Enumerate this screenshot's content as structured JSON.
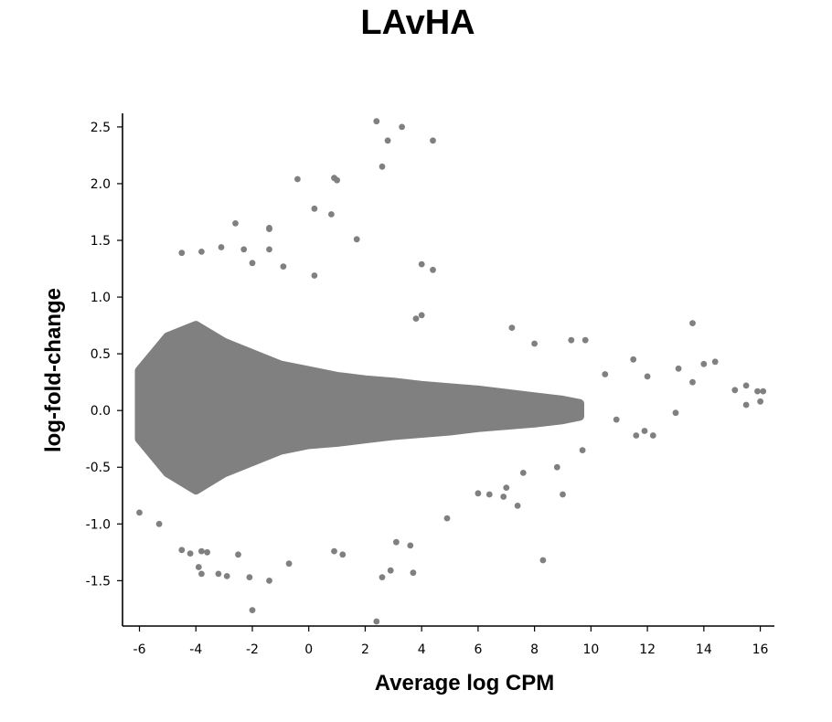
{
  "chart_data": {
    "type": "scatter",
    "title": "LAvHA",
    "xlabel": "Average log CPM",
    "ylabel": "log-fold-change",
    "xlim": [
      -6.6,
      16.5
    ],
    "ylim": [
      -1.9,
      2.62
    ],
    "x_ticks": [
      -6,
      -4,
      -2,
      0,
      2,
      4,
      6,
      8,
      10,
      12,
      14,
      16
    ],
    "x_tick_labels": [
      "-6",
      "-4",
      "-2",
      "0",
      "2",
      "4",
      "6",
      "8",
      "10",
      "12",
      "14",
      "16"
    ],
    "y_ticks": [
      -1.5,
      -1.0,
      -0.5,
      0.0,
      0.5,
      1.0,
      1.5,
      2.0,
      2.5
    ],
    "y_tick_labels": [
      "-1.5",
      "-1.0",
      "-0.5",
      "0.0",
      "0.5",
      "1.0",
      "1.5",
      "2.0",
      "2.5"
    ],
    "marker_color": "#808080",
    "grid": false,
    "legend": "none",
    "dense_cloud": [
      [
        -6.0,
        -0.25,
        0.35
      ],
      [
        -5.0,
        -0.55,
        0.65
      ],
      [
        -4.0,
        -0.7,
        0.75
      ],
      [
        -3.0,
        -0.55,
        0.6
      ],
      [
        -2.0,
        -0.45,
        0.5
      ],
      [
        -1.0,
        -0.35,
        0.4
      ],
      [
        0.0,
        -0.3,
        0.35
      ],
      [
        1.0,
        -0.28,
        0.3
      ],
      [
        2.0,
        -0.25,
        0.27
      ],
      [
        3.0,
        -0.22,
        0.25
      ],
      [
        4.0,
        -0.2,
        0.22
      ],
      [
        5.0,
        -0.18,
        0.2
      ],
      [
        6.0,
        -0.15,
        0.18
      ],
      [
        7.0,
        -0.13,
        0.15
      ],
      [
        8.0,
        -0.11,
        0.12
      ],
      [
        9.0,
        -0.08,
        0.09
      ],
      [
        9.6,
        -0.05,
        0.06
      ]
    ],
    "points": [
      [
        2.4,
        2.55
      ],
      [
        3.3,
        2.5
      ],
      [
        2.8,
        2.38
      ],
      [
        4.4,
        2.38
      ],
      [
        2.6,
        2.15
      ],
      [
        -0.4,
        2.04
      ],
      [
        0.9,
        2.05
      ],
      [
        1.0,
        2.03
      ],
      [
        0.2,
        1.78
      ],
      [
        0.8,
        1.73
      ],
      [
        -2.6,
        1.65
      ],
      [
        -1.4,
        1.61
      ],
      [
        -1.4,
        1.6
      ],
      [
        1.7,
        1.51
      ],
      [
        -4.5,
        1.39
      ],
      [
        -3.8,
        1.4
      ],
      [
        -3.1,
        1.44
      ],
      [
        -2.3,
        1.42
      ],
      [
        -1.4,
        1.42
      ],
      [
        4.0,
        1.29
      ],
      [
        4.4,
        1.24
      ],
      [
        0.2,
        1.19
      ],
      [
        -0.9,
        1.27
      ],
      [
        -2.0,
        1.3
      ],
      [
        3.8,
        0.81
      ],
      [
        4.0,
        0.84
      ],
      [
        7.2,
        0.73
      ],
      [
        13.6,
        0.77
      ],
      [
        14.0,
        0.41
      ],
      [
        9.3,
        0.62
      ],
      [
        9.8,
        0.62
      ],
      [
        8.0,
        0.59
      ],
      [
        10.5,
        0.32
      ],
      [
        11.5,
        0.45
      ],
      [
        12.0,
        0.3
      ],
      [
        13.1,
        0.37
      ],
      [
        13.6,
        0.25
      ],
      [
        14.4,
        0.43
      ],
      [
        15.1,
        0.18
      ],
      [
        15.5,
        0.22
      ],
      [
        15.9,
        0.17
      ],
      [
        16.1,
        0.17
      ],
      [
        16.0,
        0.08
      ],
      [
        15.5,
        0.05
      ],
      [
        11.6,
        -0.22
      ],
      [
        11.9,
        -0.18
      ],
      [
        12.2,
        -0.22
      ],
      [
        10.9,
        -0.08
      ],
      [
        13.0,
        -0.02
      ],
      [
        -6.0,
        -0.9
      ],
      [
        -5.3,
        -1.0
      ],
      [
        -4.5,
        -1.23
      ],
      [
        -4.2,
        -1.26
      ],
      [
        -3.8,
        -1.24
      ],
      [
        -3.6,
        -1.25
      ],
      [
        -3.9,
        -1.38
      ],
      [
        -3.8,
        -1.44
      ],
      [
        -3.2,
        -1.44
      ],
      [
        -2.9,
        -1.46
      ],
      [
        -2.1,
        -1.47
      ],
      [
        -2.5,
        -1.27
      ],
      [
        -1.4,
        -1.5
      ],
      [
        -0.7,
        -1.35
      ],
      [
        -2.0,
        -1.76
      ],
      [
        0.9,
        -1.24
      ],
      [
        1.2,
        -1.27
      ],
      [
        3.1,
        -1.16
      ],
      [
        3.6,
        -1.19
      ],
      [
        2.9,
        -1.41
      ],
      [
        2.6,
        -1.47
      ],
      [
        3.7,
        -1.43
      ],
      [
        2.4,
        -1.86
      ],
      [
        4.9,
        -0.95
      ],
      [
        6.0,
        -0.73
      ],
      [
        6.4,
        -0.74
      ],
      [
        6.9,
        -0.76
      ],
      [
        7.0,
        -0.68
      ],
      [
        7.4,
        -0.84
      ],
      [
        8.3,
        -1.32
      ],
      [
        9.0,
        -0.74
      ],
      [
        8.8,
        -0.5
      ],
      [
        9.7,
        -0.35
      ],
      [
        7.6,
        -0.55
      ]
    ]
  }
}
